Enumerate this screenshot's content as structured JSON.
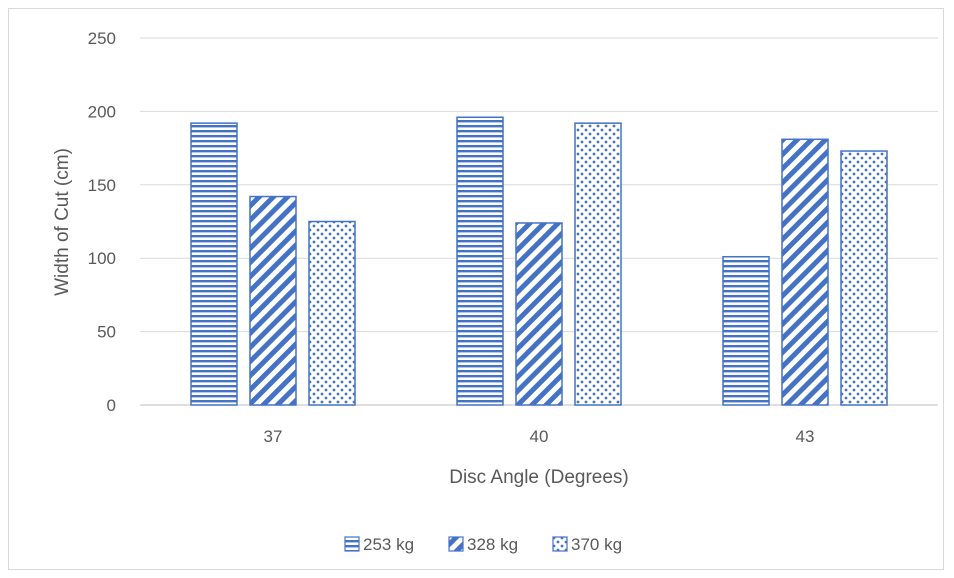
{
  "chart_data": {
    "type": "bar",
    "title": "",
    "xlabel": "Disc Angle (Degrees)",
    "ylabel": "Width of Cut (cm)",
    "categories": [
      "37",
      "40",
      "43"
    ],
    "ylim": [
      0,
      250
    ],
    "yticks": [
      0,
      50,
      100,
      150,
      200,
      250
    ],
    "grid": true,
    "legend_position": "bottom",
    "series": [
      {
        "name": "253 kg",
        "values": [
          192,
          196,
          101
        ],
        "pattern": "horizontal-lines",
        "color": "#4472C4"
      },
      {
        "name": "328 kg",
        "values": [
          142,
          124,
          181
        ],
        "pattern": "diagonal-stripes",
        "color": "#4472C4"
      },
      {
        "name": "370 kg",
        "values": [
          125,
          192,
          173
        ],
        "pattern": "dots",
        "color": "#4472C4"
      }
    ]
  }
}
